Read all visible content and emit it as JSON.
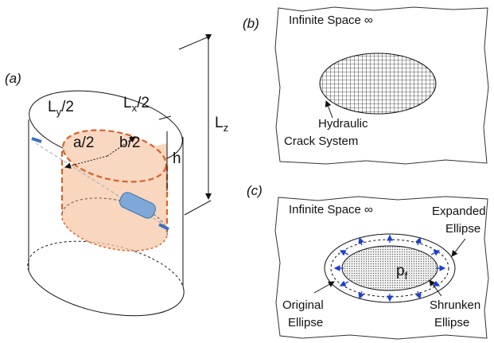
{
  "panel_a": {
    "tag": "(a)",
    "ly": {
      "base": "L",
      "sub": "y",
      "tail": "/2"
    },
    "lx": {
      "base": "L",
      "sub": "x",
      "tail": "/2"
    },
    "a_half": "a/2",
    "b_half": "b/2",
    "h": "h",
    "lz": {
      "base": "L",
      "sub": "z"
    }
  },
  "panel_b": {
    "tag": "(b)",
    "space": "Infinite Space ∞",
    "crack": [
      "Hydraulic",
      "Crack System"
    ]
  },
  "panel_c": {
    "tag": "(c)",
    "space": "Infinite Space ∞",
    "expanded": [
      "Expanded",
      "Ellipse"
    ],
    "pressure": {
      "base": "p",
      "sub": "f"
    },
    "original": [
      "Original",
      "Ellipse"
    ],
    "shrunken": [
      "Shrunken",
      "Ellipse"
    ]
  }
}
